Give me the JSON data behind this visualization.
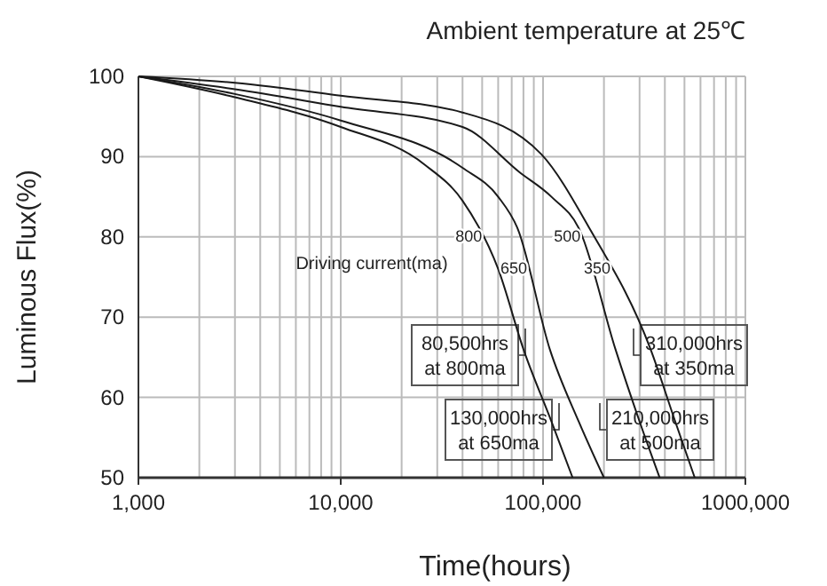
{
  "chart_data": {
    "type": "line",
    "title": "Ambient temperature at 25℃",
    "xlabel": "Time(hours)",
    "ylabel": "Luminous Flux(%)",
    "legend_title": "Driving current(ma)",
    "log": "x",
    "grid": true,
    "marker": "none",
    "line_style": "solid",
    "xlim": [
      1000,
      1000000
    ],
    "ylim": [
      50,
      100
    ],
    "xticks": [
      {
        "value": 1000,
        "label": "1,000"
      },
      {
        "value": 2000,
        "label": null
      },
      {
        "value": 3000,
        "label": null
      },
      {
        "value": 4000,
        "label": null
      },
      {
        "value": 5000,
        "label": null
      },
      {
        "value": 6000,
        "label": null
      },
      {
        "value": 7000,
        "label": null
      },
      {
        "value": 8000,
        "label": null
      },
      {
        "value": 9000,
        "label": null
      },
      {
        "value": 10000,
        "label": "10,000"
      },
      {
        "value": 20000,
        "label": null
      },
      {
        "value": 30000,
        "label": null
      },
      {
        "value": 40000,
        "label": null
      },
      {
        "value": 50000,
        "label": null
      },
      {
        "value": 60000,
        "label": null
      },
      {
        "value": 70000,
        "label": null
      },
      {
        "value": 80000,
        "label": null
      },
      {
        "value": 90000,
        "label": null
      },
      {
        "value": 100000,
        "label": "100,000"
      },
      {
        "value": 200000,
        "label": null
      },
      {
        "value": 300000,
        "label": null
      },
      {
        "value": 400000,
        "label": null
      },
      {
        "value": 500000,
        "label": null
      },
      {
        "value": 600000,
        "label": null
      },
      {
        "value": 700000,
        "label": null
      },
      {
        "value": 800000,
        "label": null
      },
      {
        "value": 900000,
        "label": null
      },
      {
        "value": 1000000,
        "label": "1000,000"
      }
    ],
    "yticks": [
      50,
      60,
      70,
      80,
      90,
      100
    ],
    "series": [
      {
        "name": "800",
        "color": "#1a1a1a",
        "x": [
          1000,
          3000,
          10000,
          26000,
          40000,
          60000,
          80000,
          110000,
          140000
        ],
        "values": [
          100,
          97.4,
          93.7,
          89,
          84.5,
          76,
          66,
          57,
          50
        ]
      },
      {
        "name": "650",
        "color": "#1a1a1a",
        "x": [
          1000,
          3000,
          10000,
          40000,
          60000,
          75000,
          108000,
          150000,
          200000
        ],
        "values": [
          100,
          97.8,
          94.5,
          88.6,
          85,
          81,
          66,
          57,
          50
        ]
      },
      {
        "name": "500",
        "color": "#1a1a1a",
        "x": [
          1000,
          3000,
          10000,
          40000,
          77000,
          110000,
          152000,
          228000,
          300000,
          377000
        ],
        "values": [
          100,
          98.4,
          96.2,
          93.7,
          88,
          85,
          80.8,
          66,
          57,
          50
        ]
      },
      {
        "name": "350",
        "color": "#1a1a1a",
        "x": [
          1000,
          3000,
          10000,
          40000,
          98000,
          172000,
          340000,
          450000,
          562000
        ],
        "values": [
          100,
          99.2,
          97.6,
          95.5,
          90.3,
          80.8,
          66,
          57,
          50
        ]
      }
    ],
    "annotations": [
      "80,500hrs\nat 800ma",
      "130,000hrs\nat 650ma",
      "210,000hrs\nat 500ma",
      "310,000hrs\nat 350ma"
    ]
  }
}
